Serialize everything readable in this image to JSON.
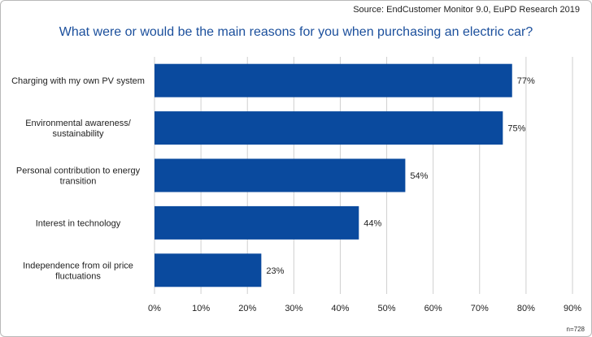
{
  "source": "Source: EndCustomer Monitor 9.0, EuPD Research 2019",
  "sample_size": "n=728",
  "chart_data": {
    "type": "bar",
    "orientation": "horizontal",
    "title": "What were or would be the main reasons for you when purchasing an electric car?",
    "categories": [
      "Charging with my own PV system",
      "Environmental awareness/\nsustainability",
      "Personal contribution to energy\ntransition",
      "Interest in technology",
      "Independence from oil price\nfluctuations"
    ],
    "values": [
      77,
      75,
      54,
      44,
      23
    ],
    "value_labels": [
      "77%",
      "75%",
      "54%",
      "44%",
      "23%"
    ],
    "xlim": [
      0,
      90
    ],
    "x_ticks": [
      "0%",
      "10%",
      "20%",
      "30%",
      "40%",
      "50%",
      "60%",
      "70%",
      "80%",
      "90%"
    ],
    "grid": true,
    "colors": {
      "bar": "#0a4a9e",
      "grid": "#cfcfcf",
      "title": "#1b4f9c"
    }
  }
}
